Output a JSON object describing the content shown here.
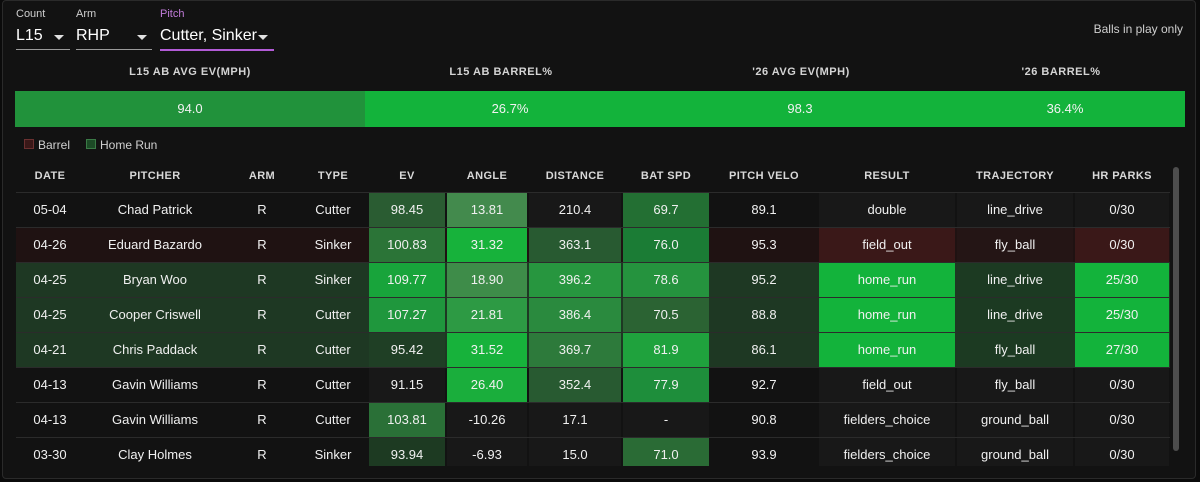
{
  "filters": [
    {
      "label": "Count",
      "value": "L15"
    },
    {
      "label": "Arm",
      "value": "RHP"
    },
    {
      "label": "Pitch",
      "value": "Cutter, Sinker"
    }
  ],
  "note": "Balls in play only",
  "summary": {
    "headers": [
      "L15 AB AVG EV(MPH)",
      "L15 AB BARREL%",
      "'26 AVG EV(MPH)",
      "'26 BARREL%"
    ],
    "values": [
      "94.0",
      "26.7%",
      "98.3",
      "36.4%"
    ],
    "colors": [
      "#21923b",
      "#13b33b",
      "#13b33b",
      "#13b33b"
    ]
  },
  "legend": [
    {
      "label": "Barrel",
      "color": "#3a1818"
    },
    {
      "label": "Home Run",
      "color": "#1c4a26"
    }
  ],
  "table": {
    "columns": [
      "DATE",
      "PITCHER",
      "ARM",
      "TYPE",
      "EV",
      "ANGLE",
      "DISTANCE",
      "BAT SPD",
      "PITCH VELO",
      "RESULT",
      "TRAJECTORY",
      "HR PARKS"
    ],
    "rows": [
      {
        "cells": [
          "05-04",
          "Chad Patrick",
          "R",
          "Cutter",
          "98.45",
          "13.81",
          "210.4",
          "69.7",
          "89.1",
          "double",
          "line_drive",
          "0/30"
        ],
        "row_bg": "#121212",
        "colors": {
          "EV": "#2a5c32",
          "ANGLE": "#438a4d",
          "DISTANCE": "#181818",
          "BAT SPD": "#236f33",
          "RESULT": "#181818",
          "TRAJECTORY": "#181818",
          "HR PARKS": "#181818"
        }
      },
      {
        "cells": [
          "04-26",
          "Eduard Bazardo",
          "R",
          "Sinker",
          "100.83",
          "31.32",
          "363.1",
          "76.0",
          "95.3",
          "field_out",
          "fly_ball",
          "0/30"
        ],
        "row_bg": "#1f1212",
        "colors": {
          "EV": "#2b7437",
          "ANGLE": "#17b23b",
          "DISTANCE": "#285a31",
          "BAT SPD": "#1b7c35",
          "RESULT": "#3a1818",
          "TRAJECTORY": "#241515",
          "HR PARKS": "#3a1818"
        }
      },
      {
        "cells": [
          "04-25",
          "Bryan Woo",
          "R",
          "Sinker",
          "109.77",
          "18.90",
          "396.2",
          "78.6",
          "95.2",
          "home_run",
          "line_drive",
          "25/30"
        ],
        "row_bg": "#1e3823",
        "colors": {
          "EV": "#18a43b",
          "ANGLE": "#3e8c49",
          "DISTANCE": "#27963f",
          "BAT SPD": "#25933e",
          "RESULT": "#13b33b",
          "TRAJECTORY": "#1c3a22",
          "HR PARKS": "#13b33b"
        }
      },
      {
        "cells": [
          "04-25",
          "Cooper Criswell",
          "R",
          "Cutter",
          "107.27",
          "21.81",
          "386.4",
          "70.5",
          "88.8",
          "home_run",
          "line_drive",
          "25/30"
        ],
        "row_bg": "#1e3823",
        "colors": {
          "EV": "#1f973d",
          "ANGLE": "#2d9a44",
          "DISTANCE": "#2a8a3e",
          "BAT SPD": "#2b6333",
          "RESULT": "#13b33b",
          "TRAJECTORY": "#1c3a22",
          "HR PARKS": "#13b33b"
        }
      },
      {
        "cells": [
          "04-21",
          "Chris Paddack",
          "R",
          "Cutter",
          "95.42",
          "31.52",
          "369.7",
          "81.9",
          "86.1",
          "home_run",
          "fly_ball",
          "27/30"
        ],
        "row_bg": "#1e3823",
        "colors": {
          "EV": "#1f3f25",
          "ANGLE": "#17b23b",
          "DISTANCE": "#2d7a3b",
          "BAT SPD": "#1fa23d",
          "RESULT": "#13b33b",
          "TRAJECTORY": "#1c3a22",
          "HR PARKS": "#13b33b"
        }
      },
      {
        "cells": [
          "04-13",
          "Gavin Williams",
          "R",
          "Cutter",
          "91.15",
          "26.40",
          "352.4",
          "77.9",
          "92.7",
          "field_out",
          "fly_ball",
          "0/30"
        ],
        "row_bg": "#121212",
        "colors": {
          "EV": "#181818",
          "ANGLE": "#1aae3c",
          "DISTANCE": "#285a31",
          "BAT SPD": "#1e8e3b",
          "RESULT": "#181818",
          "TRAJECTORY": "#181818",
          "HR PARKS": "#181818"
        }
      },
      {
        "cells": [
          "04-13",
          "Gavin Williams",
          "R",
          "Cutter",
          "103.81",
          "-10.26",
          "17.1",
          "-",
          "90.8",
          "fielders_choice",
          "ground_ball",
          "0/30"
        ],
        "row_bg": "#121212",
        "colors": {
          "EV": "#2a7037",
          "ANGLE": "#181818",
          "DISTANCE": "#181818",
          "BAT SPD": "#181818",
          "RESULT": "#181818",
          "TRAJECTORY": "#181818",
          "HR PARKS": "#181818"
        }
      },
      {
        "cells": [
          "03-30",
          "Clay Holmes",
          "R",
          "Sinker",
          "93.94",
          "-6.93",
          "15.0",
          "71.0",
          "93.9",
          "fielders_choice",
          "ground_ball",
          "0/30"
        ],
        "row_bg": "#121212",
        "colors": {
          "EV": "#1d3a22",
          "ANGLE": "#181818",
          "DISTANCE": "#181818",
          "BAT SPD": "#2a6b35",
          "RESULT": "#181818",
          "TRAJECTORY": "#181818",
          "HR PARKS": "#181818"
        }
      }
    ]
  }
}
